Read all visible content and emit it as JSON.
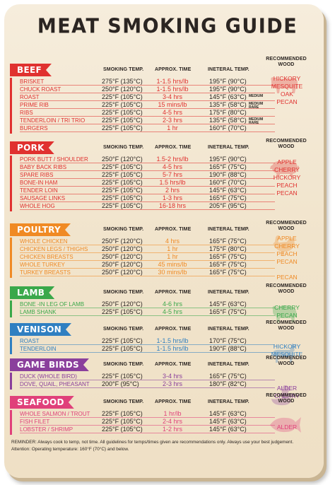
{
  "title": "MEAT SMOKING GUIDE",
  "columns": {
    "smoking_temp": "SMOKING TEMP.",
    "approx_time": "APPROX. TIME",
    "internal_temp": "INETERAL TEMP.",
    "recommended_wood": "RECOMMENDED WOOD"
  },
  "sections": [
    {
      "name": "BEEF",
      "color": "#e0312f",
      "rows": [
        {
          "cut": "BRISKET",
          "temp": "275°F (135°C)",
          "time": "1-1.5 hrs/lb",
          "internal": "195°F (90°C)",
          "note": ""
        },
        {
          "cut": "CHUCK ROAST",
          "temp": "250°F (120°C)",
          "time": "1-1.5 hrs/lb",
          "internal": "195°F (90°C)",
          "note": ""
        },
        {
          "cut": "ROAST",
          "temp": "225°F (105°C)",
          "time": "3-4 hrs",
          "internal": "145°F (63°C)",
          "note": "MEDIUM"
        },
        {
          "cut": "PRIME RIB",
          "temp": "225°F (105°C)",
          "time": "15 mins/lb",
          "internal": "135°F (58°C)",
          "note": "MEDIUM RARE"
        },
        {
          "cut": "RIBS",
          "temp": "225°F (105°C)",
          "time": "4-5 hrs",
          "internal": "175°F (80°C)",
          "note": ""
        },
        {
          "cut": "TENDERLOIN / TRI TRIO",
          "temp": "225°F (105°C)",
          "time": "2-3 hrs",
          "internal": "135°F (58°C)",
          "note": "MEDIUM RARE"
        },
        {
          "cut": "BURGERS",
          "temp": "225°F (105°C)",
          "time": "1 hr",
          "internal": "160°F (70°C)",
          "note": ""
        }
      ],
      "woods": [
        "HICKORY",
        "MESQUITE",
        "OAK",
        "PECAN"
      ]
    },
    {
      "name": "PORK",
      "color": "#e0312f",
      "rows": [
        {
          "cut": "PORK BUTT / SHOULDER",
          "temp": "250°F (120°C)",
          "time": "1.5-2 hrs/lb",
          "internal": "195°F (90°C)",
          "note": ""
        },
        {
          "cut": "BABY BACK RIBS",
          "temp": "225°F (105°C)",
          "time": "4-5 hrs",
          "internal": "165°F (75°C)",
          "note": ""
        },
        {
          "cut": "SPARE RIBS",
          "temp": "225°F (105°C)",
          "time": "5-7 hrs",
          "internal": "190°F (88°C)",
          "note": ""
        },
        {
          "cut": "BONE-IN HAM",
          "temp": "225°F (105°C)",
          "time": "1.5 hrs/lb",
          "internal": "160°F (70°C)",
          "note": ""
        },
        {
          "cut": "TENDER LOIN",
          "temp": "225°F (105°C)",
          "time": "2 hrs",
          "internal": "145°F (63°C)",
          "note": ""
        },
        {
          "cut": "SAUSAGE LINKS",
          "temp": "225°F (105°C)",
          "time": "1-3 hrs",
          "internal": "165°F (75°C)",
          "note": ""
        },
        {
          "cut": "WHOLE HOG",
          "temp": "225°F (105°C)",
          "time": "16-18 hrs",
          "internal": "205°F (95°C)",
          "note": ""
        }
      ],
      "woods": [
        "APPLE",
        "CHERRY",
        "HICKORY",
        "PEACH",
        "PECAN"
      ]
    },
    {
      "name": "POULTRY",
      "color": "#f08a24",
      "rows": [
        {
          "cut": "WHOLE CHICKEN",
          "temp": "250°F (120°C)",
          "time": "4 hrs",
          "internal": "165°F (75°C)",
          "note": ""
        },
        {
          "cut": "CHICKEN LEGS / THIGHS",
          "temp": "250°F (120°C)",
          "time": "1 hr",
          "internal": "175°F (80°C)",
          "note": ""
        },
        {
          "cut": "CHICKEN BREASTS",
          "temp": "250°F (120°C)",
          "time": "1 hr",
          "internal": "165°F (75°C)",
          "note": ""
        },
        {
          "cut": "WHOLE TURKEY",
          "temp": "250°F (120°C)",
          "time": "45 mins/lb",
          "internal": "165°F (75°C)",
          "note": ""
        },
        {
          "cut": "TURKEY BREASTS",
          "temp": "250°F (120°C)",
          "time": "30 mins/lb",
          "internal": "165°F (75°C)",
          "note": ""
        }
      ],
      "woods": [
        "APPLE",
        "CHERRY",
        "PEACH",
        "PECAN",
        "",
        "PECAN"
      ]
    },
    {
      "name": "LAMB",
      "color": "#3aa84a",
      "rows": [
        {
          "cut": "BONE -IN LEG OF LAMB",
          "temp": "250°F (120°C)",
          "time": "4-6 hrs",
          "internal": "145°F (63°C)",
          "note": ""
        },
        {
          "cut": "LAMB SHANK",
          "temp": "225°F (105°C)",
          "time": "4-5 hrs",
          "internal": "165°F (75°C)",
          "note": ""
        }
      ],
      "woods": [
        "CHERRY",
        "PECAN"
      ]
    },
    {
      "name": "VENISON",
      "color": "#2f7fc1",
      "rows": [
        {
          "cut": "ROAST",
          "temp": "225°F (105°C)",
          "time": "1-1.5 hrs/lb",
          "internal": "170°F (75°C)",
          "note": ""
        },
        {
          "cut": "TENDERLOIN",
          "temp": "225°F (105°C)",
          "time": "1-1.5 hrs/lb",
          "internal": "190°F (88°C)",
          "note": ""
        }
      ],
      "woods": [
        "HICKORY",
        "MESQUITE"
      ]
    },
    {
      "name": "GAME BIRDS",
      "color": "#8a3f9c",
      "rows": [
        {
          "cut": "DUCK (WHOLE BIRD)",
          "temp": "225°F (105°C)",
          "time": "3-4 hrs",
          "internal": "165°F (75°C)",
          "note": ""
        },
        {
          "cut": "DOVE, QUAIL, PHEASANT",
          "temp": "200°F (95°C)",
          "time": "2-3 hrs",
          "internal": "180°F (82°C)",
          "note": ""
        }
      ],
      "woods": [
        "ALDER",
        "CHERRY"
      ]
    },
    {
      "name": "SEAFOOD",
      "color": "#e0407a",
      "rows": [
        {
          "cut": "WHOLE SALMON / TROUT",
          "temp": "225°F (105°C)",
          "time": "1 hr/lb",
          "internal": "145°F (63°C)",
          "note": ""
        },
        {
          "cut": "FISH FILET",
          "temp": "225°F (105°C)",
          "time": "2-4 hrs",
          "internal": "145°F (63°C)",
          "note": ""
        },
        {
          "cut": "LOBSTER / SHRIMP",
          "temp": "225°F (105°C)",
          "time": "1-2 hrs",
          "internal": "145°F (63°C)",
          "note": ""
        }
      ],
      "woods": [
        "",
        "ALDER"
      ]
    }
  ],
  "footer": {
    "line1": "REMINDER: Always cook to temp, not time. All guidelines for temps/times given are recommendations only. Always use your best judgement.",
    "line2": "Attention: Operating temperature: 160°F (70°C) and below."
  }
}
